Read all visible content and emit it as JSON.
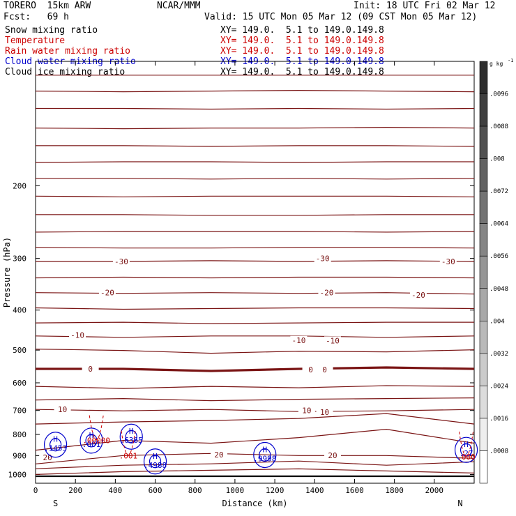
{
  "header": {
    "model": "TORERO  15km ARW",
    "org": "NCAR/MMM",
    "init": "Init: 18 UTC Fri 02 Mar 12",
    "fcst": "Fcst:   69 h",
    "valid": "Valid: 15 UTC Mon 05 Mar 12 (09 CST Mon 05 Mar 12)"
  },
  "fields": [
    {
      "name": "Snow mixing ratio",
      "color": "#000000",
      "xy": "XY= 149.0.  5.1 to 149.0.149.8"
    },
    {
      "name": "Temperature",
      "color": "#cc0000",
      "xy": "XY= 149.0.  5.1 to 149.0.149.8"
    },
    {
      "name": "Rain water mixing ratio",
      "color": "#cc0000",
      "xy": "XY= 149.0.  5.1 to 149.0.149.8"
    },
    {
      "name": "Cloud water mixing ratio",
      "color": "#0000cc",
      "xy": "XY= 149.0.  5.1 to 149.0.149.8"
    },
    {
      "name": "Cloud ice mixing ratio",
      "color": "#000000",
      "xy": "XY= 149.0.  5.1 to 149.0.149.8"
    }
  ],
  "chart_data": {
    "type": "cross-section contour",
    "xlabel": "Distance (km)",
    "ylabel": "Pressure (hPa)",
    "xlim": [
      0,
      2200
    ],
    "ylim": [
      100,
      1050
    ],
    "y_scale": "log",
    "xticks": [
      0,
      200,
      400,
      600,
      800,
      1000,
      1200,
      1400,
      1600,
      1800,
      2000
    ],
    "yticks": [
      200,
      300,
      400,
      500,
      600,
      700,
      800,
      900,
      1000
    ],
    "x_end_labels": {
      "left": "S",
      "right": "N"
    },
    "colorbar": {
      "unit_label": "g kg",
      "unit_exponent": "-1",
      "ticks": [
        ".0096",
        ".0088",
        ".008",
        ".0072",
        ".0064",
        ".0056",
        ".0048",
        ".004",
        ".0032",
        ".0024",
        ".0016",
        ".0008"
      ]
    },
    "temperature_contours": {
      "color": "#7a1414",
      "interval_C": 5,
      "labels": [
        {
          "text": "-30",
          "x": 430,
          "p": 305
        },
        {
          "text": "-30",
          "x": 1440,
          "p": 300
        },
        {
          "text": "-30",
          "x": 2070,
          "p": 305
        },
        {
          "text": "-20",
          "x": 360,
          "p": 363
        },
        {
          "text": "-20",
          "x": 1460,
          "p": 363
        },
        {
          "text": "-20",
          "x": 1920,
          "p": 368
        },
        {
          "text": "-10",
          "x": 210,
          "p": 460
        },
        {
          "text": "-10",
          "x": 1320,
          "p": 473
        },
        {
          "text": "-10",
          "x": 1490,
          "p": 474
        },
        {
          "text": "0",
          "x": 275,
          "p": 555
        },
        {
          "text": "0",
          "x": 1380,
          "p": 557
        },
        {
          "text": "0",
          "x": 1450,
          "p": 557
        },
        {
          "text": "10",
          "x": 135,
          "p": 696
        },
        {
          "text": "10",
          "x": 1360,
          "p": 699
        },
        {
          "text": "10",
          "x": 1450,
          "p": 706
        },
        {
          "text": "20",
          "x": 60,
          "p": 910
        },
        {
          "text": "20",
          "x": 920,
          "p": 895
        },
        {
          "text": "20",
          "x": 1490,
          "p": 898
        }
      ]
    },
    "cloud_water": {
      "color": "#0000cc",
      "maxima": [
        {
          "label": "H",
          "value": ".1453",
          "x": 100,
          "p": 847
        },
        {
          "label": "H",
          "value": ".001",
          "x": 280,
          "p": 828
        },
        {
          "label": "H",
          "value": ".6365",
          "x": 480,
          "p": 810
        },
        {
          "label": "H",
          "value": ".4988",
          "x": 600,
          "p": 930
        },
        {
          "label": "H",
          "value": ".9998",
          "x": 1150,
          "p": 897
        },
        {
          "label": "H",
          "value": ".27",
          "x": 2160,
          "p": 872
        }
      ]
    },
    "rain_water": {
      "color": "#cc0000",
      "labels": [
        {
          "text": ".00000",
          "x": 305,
          "p": 840
        },
        {
          "text": ".001",
          "x": 465,
          "p": 915
        },
        {
          "text": ".000",
          "x": 2160,
          "p": 920
        }
      ]
    }
  }
}
